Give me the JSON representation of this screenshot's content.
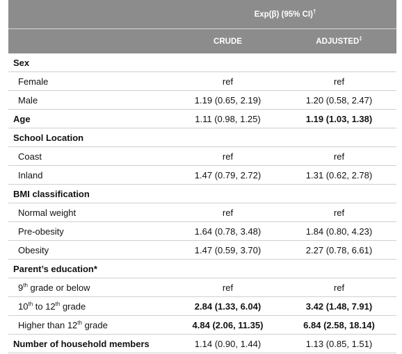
{
  "table": {
    "header": {
      "top": [
        "Exp(β) (95% CI)",
        "†"
      ],
      "columns": [
        "CRUDE",
        [
          "ADJUSTED",
          "‡"
        ]
      ]
    },
    "rows": [
      {
        "cells": [
          "Sex",
          "",
          ""
        ],
        "section": true
      },
      {
        "cells": [
          "Female",
          "ref",
          "ref"
        ]
      },
      {
        "cells": [
          "Male",
          "1.19 (0.65, 2.19)",
          "1.20 (0.58, 2.47)"
        ]
      },
      {
        "cells": [
          "Age",
          "1.11 (0.98, 1.25)",
          "1.19 (1.03, 1.38)"
        ],
        "section": true,
        "bold": [
          false,
          false,
          true
        ]
      },
      {
        "cells": [
          "School Location",
          "",
          ""
        ],
        "section": true
      },
      {
        "cells": [
          "Coast",
          "ref",
          "ref"
        ]
      },
      {
        "cells": [
          "Inland",
          "1.47 (0.79, 2.72)",
          "1.31 (0.62, 2.78)"
        ]
      },
      {
        "cells": [
          "BMI classification",
          "",
          ""
        ],
        "section": true
      },
      {
        "cells": [
          "Normal weight",
          "ref",
          "ref"
        ]
      },
      {
        "cells": [
          "Pre-obesity",
          "1.64 (0.78, 3.48)",
          "1.84 (0.80, 4.23)"
        ]
      },
      {
        "cells": [
          "Obesity",
          "1.47 (0.59, 3.70)",
          "2.27 (0.78, 6.61)"
        ]
      },
      {
        "cells": [
          "Parent’s education*",
          "",
          ""
        ],
        "section": true
      },
      {
        "cells": [
          [
            "9",
            "th",
            " grade or below"
          ],
          "ref",
          "ref"
        ]
      },
      {
        "cells": [
          [
            "10",
            "th",
            " to 12",
            "th",
            " grade"
          ],
          "2.84 (1.33, 6.04)",
          "3.42 (1.48, 7.91)"
        ],
        "bold": [
          false,
          true,
          true
        ]
      },
      {
        "cells": [
          [
            "Higher than 12",
            "th",
            " grade"
          ],
          "4.84 (2.06, 11.35)",
          "6.84 (2.58, 18.14)"
        ],
        "bold": [
          false,
          true,
          true
        ]
      },
      {
        "cells": [
          "Number of household members",
          "1.14 (0.90, 1.44)",
          "1.13 (0.85, 1.51)"
        ],
        "section": true
      }
    ]
  }
}
